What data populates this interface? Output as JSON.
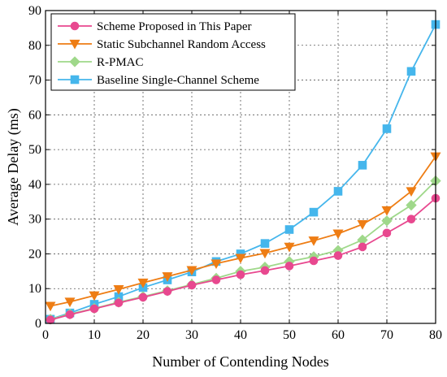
{
  "chart_data": {
    "type": "line",
    "title": "",
    "xlabel": "Number of Contending Nodes",
    "ylabel": "Average Delay (ms)",
    "xlim": [
      0,
      80
    ],
    "ylim": [
      0,
      90
    ],
    "xticks": [
      0,
      10,
      20,
      30,
      40,
      50,
      60,
      70,
      80
    ],
    "yticks": [
      0,
      10,
      20,
      30,
      40,
      50,
      60,
      70,
      80,
      90
    ],
    "grid": true,
    "legend_position": "top-left",
    "x": [
      1,
      5,
      10,
      15,
      20,
      25,
      30,
      35,
      40,
      45,
      50,
      55,
      60,
      65,
      70,
      75,
      80
    ],
    "series": [
      {
        "name": "Scheme Proposed in This Paper",
        "color": "#e8488f",
        "marker": "circle",
        "values": [
          1.0,
          2.5,
          4.2,
          5.9,
          7.5,
          9.2,
          11.0,
          12.5,
          14.0,
          15.2,
          16.5,
          18.0,
          19.5,
          22.0,
          26.0,
          30.0,
          36.0
        ]
      },
      {
        "name": "Static Subchannel Random Access",
        "color": "#ee7d14",
        "marker": "triangle-down",
        "values": [
          5.0,
          6.2,
          8.0,
          9.8,
          11.7,
          13.5,
          15.3,
          17.2,
          18.8,
          20.2,
          22.0,
          23.8,
          25.8,
          28.5,
          32.5,
          38.0,
          48.0
        ]
      },
      {
        "name": "R-PMAC",
        "color": "#9fd88a",
        "marker": "diamond",
        "values": [
          1.2,
          2.7,
          4.3,
          6.1,
          7.7,
          9.4,
          11.2,
          13.0,
          15.0,
          16.2,
          17.8,
          19.2,
          21.0,
          24.0,
          29.5,
          34.0,
          41.0
        ]
      },
      {
        "name": "Baseline Single-Channel Scheme",
        "color": "#45b6ec",
        "marker": "square",
        "values": [
          1.2,
          3.0,
          5.5,
          7.7,
          10.3,
          12.5,
          14.8,
          17.8,
          20.0,
          23.0,
          27.0,
          32.0,
          38.0,
          45.5,
          56.0,
          72.5,
          86.0
        ]
      }
    ]
  }
}
